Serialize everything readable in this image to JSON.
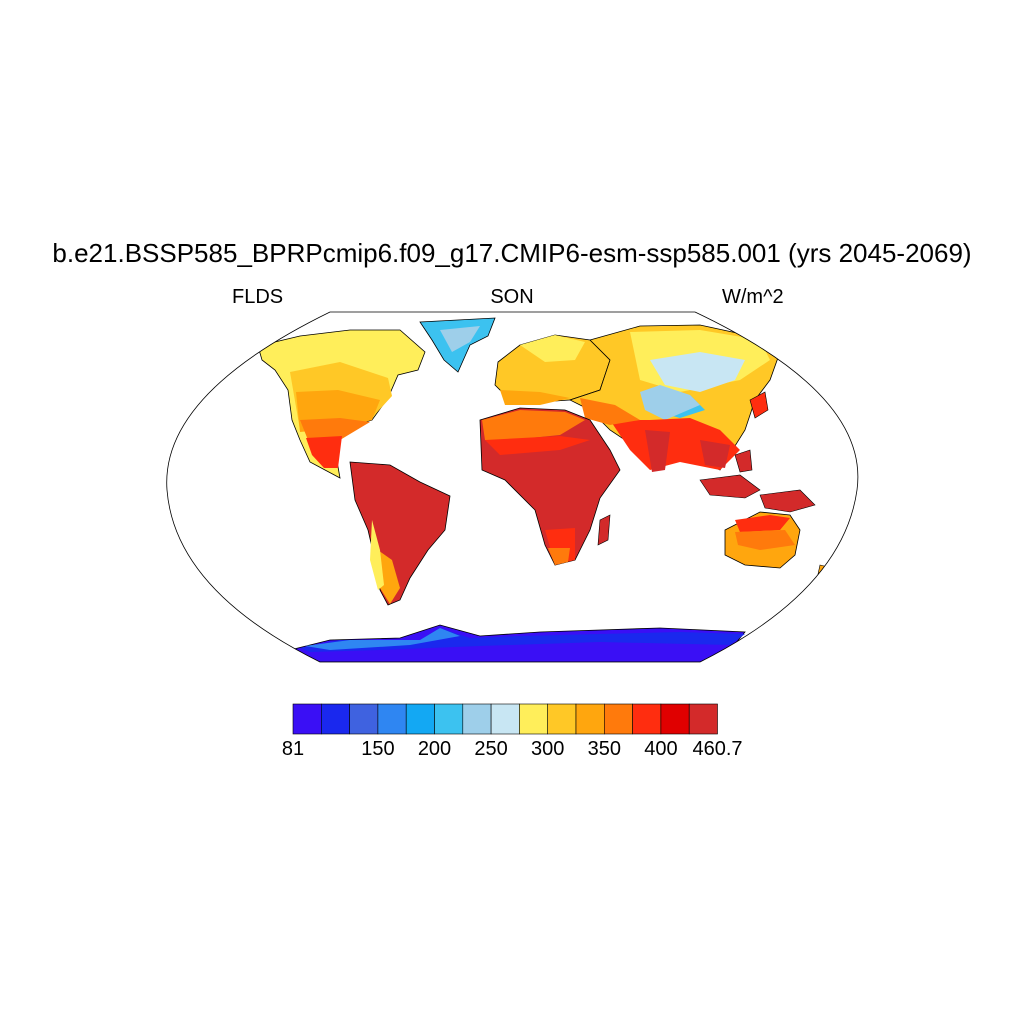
{
  "title": "b.e21.BSSP585_BPRPcmip6.f09_g17.CMIP6-esm-ssp585.001 (yrs 2045-2069)",
  "variable": "FLDS",
  "season": "SON",
  "units": "W/m^2",
  "colorbar": {
    "colors": [
      "#3a0ff5",
      "#1a28ee",
      "#3f62e0",
      "#2f86f2",
      "#13a8f3",
      "#3cc2f0",
      "#9ecfea",
      "#c8e6f3",
      "#ffee5a",
      "#ffc826",
      "#ffa60e",
      "#ff7a0c",
      "#ff2d0f",
      "#e00000",
      "#d32a2a"
    ],
    "labels": [
      "81",
      "150",
      "200",
      "250",
      "300",
      "350",
      "400",
      "460.7"
    ]
  }
}
